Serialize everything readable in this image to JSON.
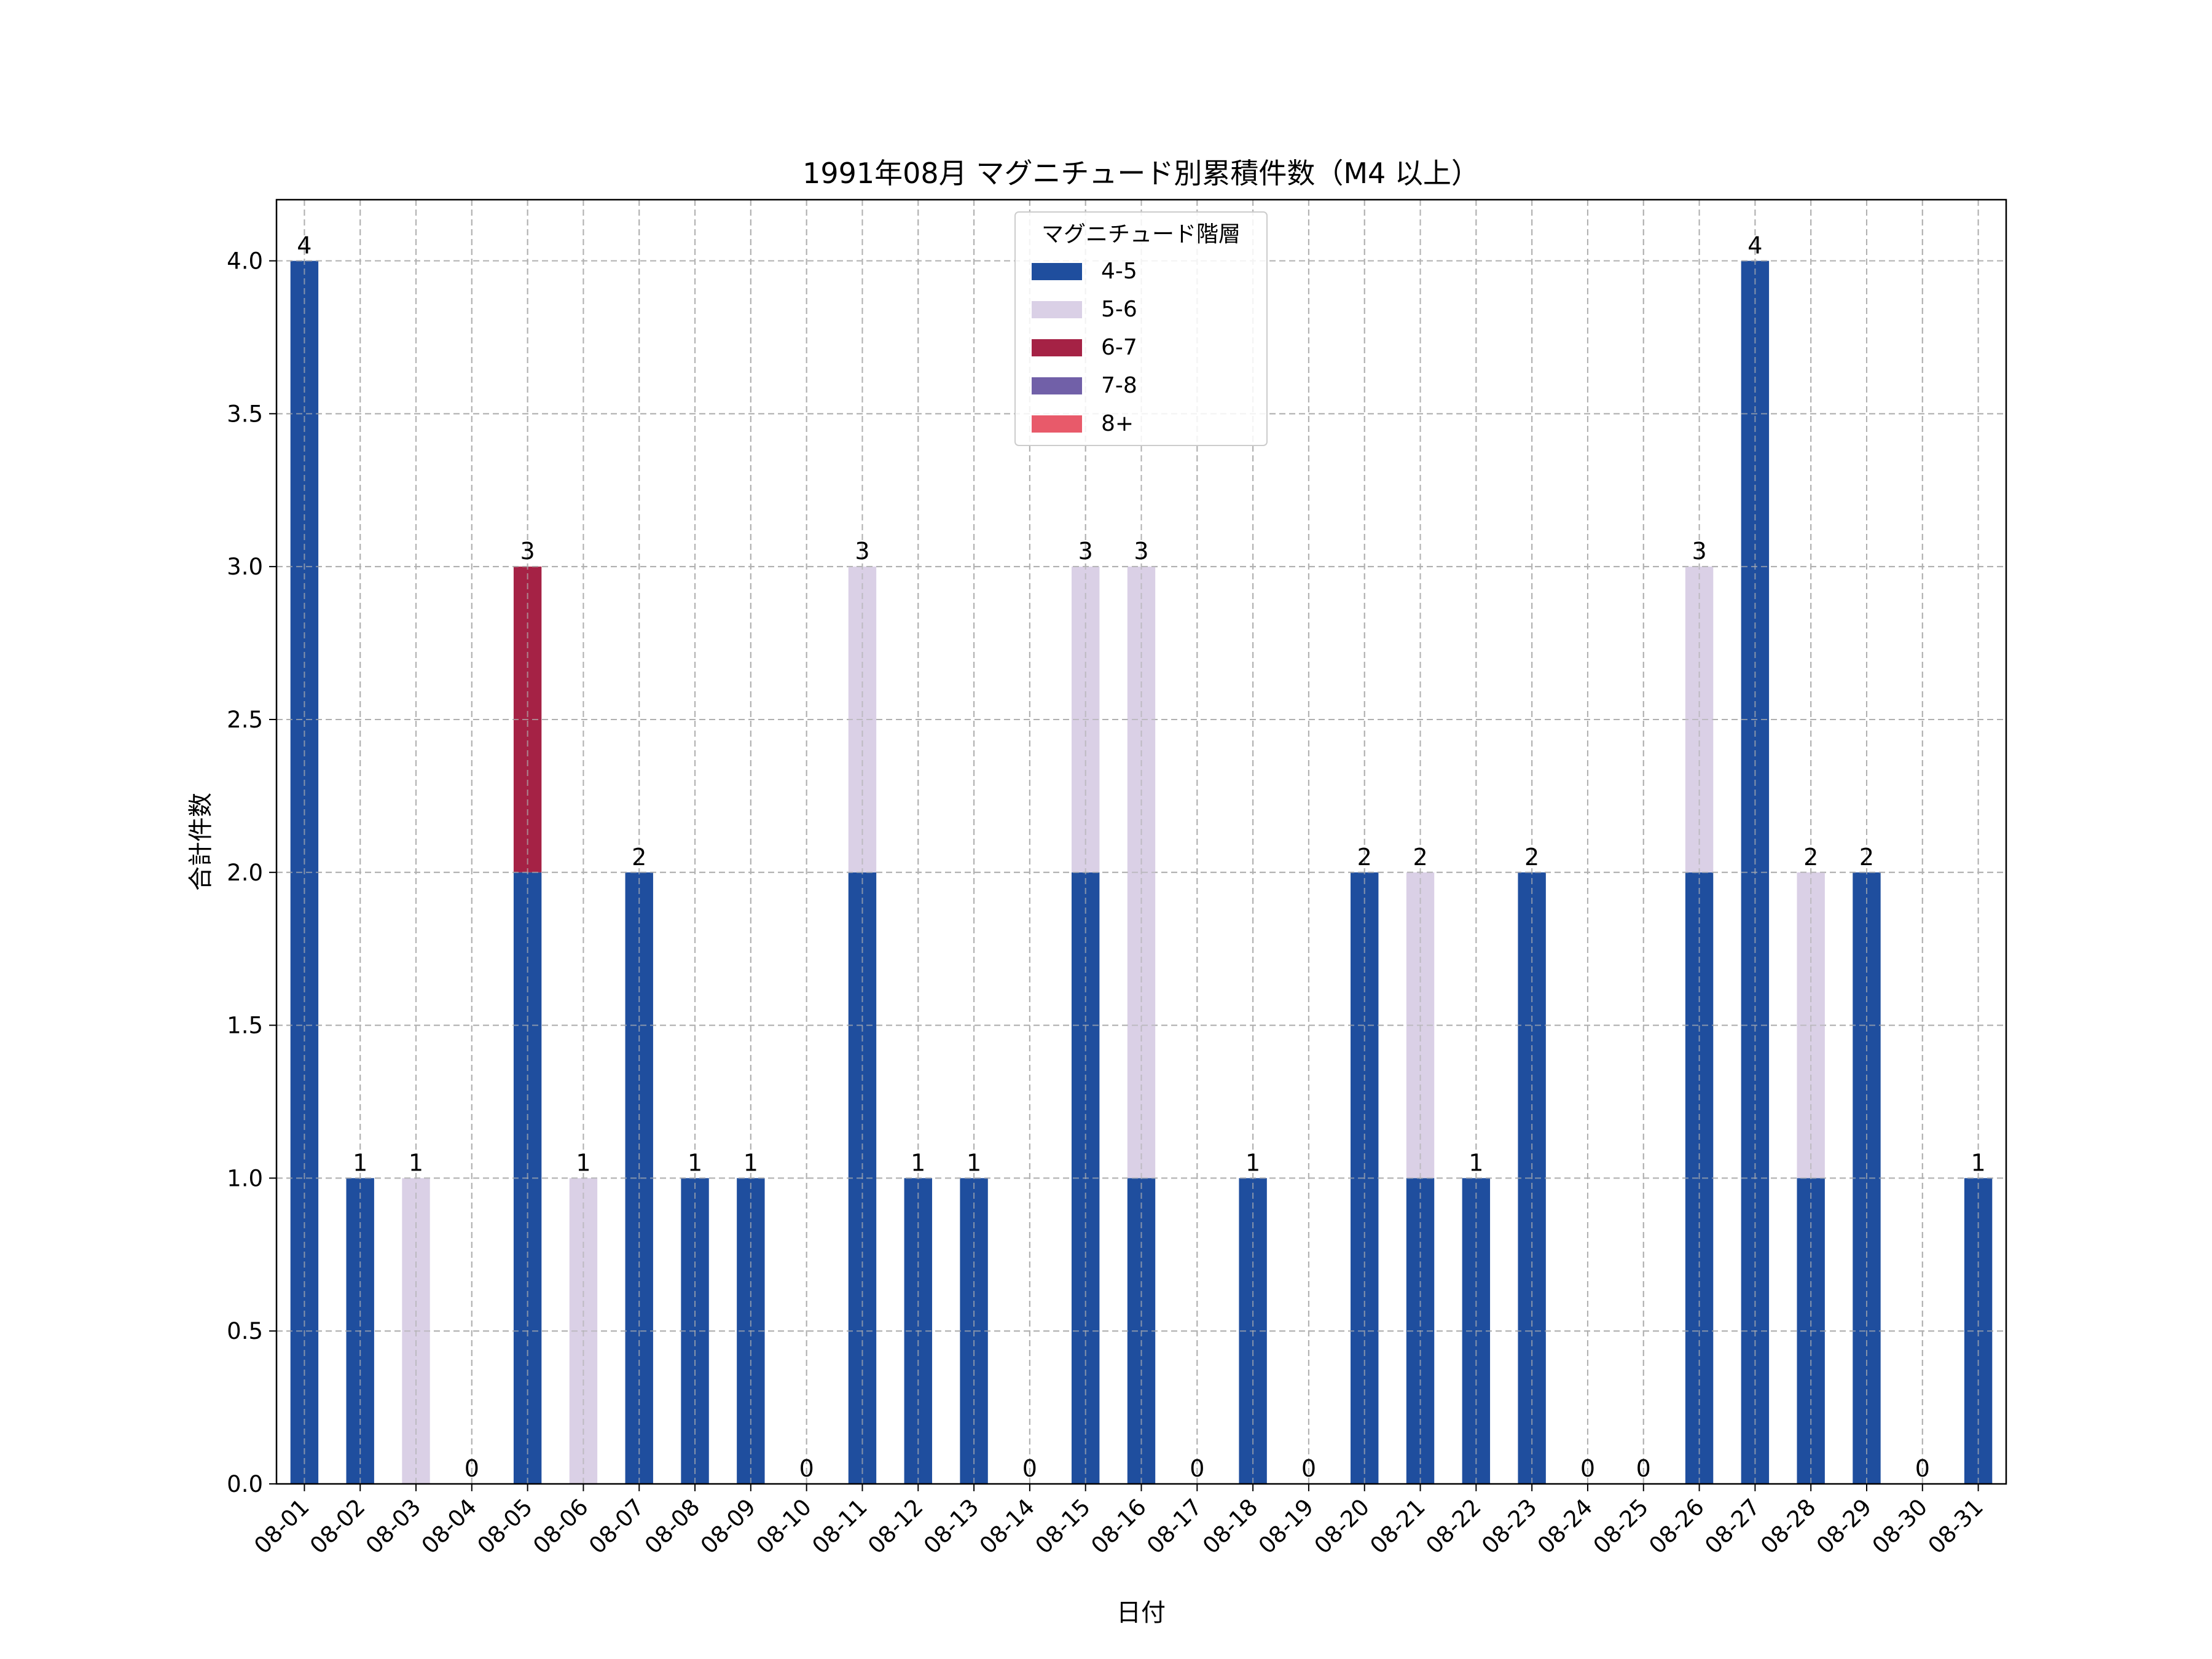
{
  "chart_data": {
    "type": "bar",
    "stacked": true,
    "title": "1991年08月 マグニチュード別累積件数（M4 以上）",
    "xlabel": "日付",
    "ylabel": "合計件数",
    "ylim": [
      0,
      4.2
    ],
    "yticks": [
      0.0,
      0.5,
      1.0,
      1.5,
      2.0,
      2.5,
      3.0,
      3.5,
      4.0
    ],
    "ytick_labels": [
      "0.0",
      "0.5",
      "1.0",
      "1.5",
      "2.0",
      "2.5",
      "3.0",
      "3.5",
      "4.0"
    ],
    "grid": true,
    "legend": {
      "title": "マグニチュード階層",
      "placement": "top-center"
    },
    "categories": [
      "08-01",
      "08-02",
      "08-03",
      "08-04",
      "08-05",
      "08-06",
      "08-07",
      "08-08",
      "08-09",
      "08-10",
      "08-11",
      "08-12",
      "08-13",
      "08-14",
      "08-15",
      "08-16",
      "08-17",
      "08-18",
      "08-19",
      "08-20",
      "08-21",
      "08-22",
      "08-23",
      "08-24",
      "08-25",
      "08-26",
      "08-27",
      "08-28",
      "08-29",
      "08-30",
      "08-31"
    ],
    "series": [
      {
        "name": "4-5",
        "color": "#1f4e9e",
        "values": [
          4,
          1,
          0,
          0,
          2,
          0,
          2,
          1,
          1,
          0,
          2,
          1,
          1,
          0,
          2,
          1,
          0,
          1,
          0,
          2,
          1,
          1,
          2,
          0,
          0,
          2,
          4,
          1,
          2,
          0,
          1
        ]
      },
      {
        "name": "5-6",
        "color": "#dad0e6",
        "values": [
          0,
          0,
          1,
          0,
          0,
          1,
          0,
          0,
          0,
          0,
          1,
          0,
          0,
          0,
          1,
          2,
          0,
          0,
          0,
          0,
          1,
          0,
          0,
          0,
          0,
          1,
          0,
          1,
          0,
          0,
          0
        ]
      },
      {
        "name": "6-7",
        "color": "#a52245",
        "values": [
          0,
          0,
          0,
          0,
          1,
          0,
          0,
          0,
          0,
          0,
          0,
          0,
          0,
          0,
          0,
          0,
          0,
          0,
          0,
          0,
          0,
          0,
          0,
          0,
          0,
          0,
          0,
          0,
          0,
          0,
          0
        ]
      },
      {
        "name": "7-8",
        "color": "#7160a8",
        "values": [
          0,
          0,
          0,
          0,
          0,
          0,
          0,
          0,
          0,
          0,
          0,
          0,
          0,
          0,
          0,
          0,
          0,
          0,
          0,
          0,
          0,
          0,
          0,
          0,
          0,
          0,
          0,
          0,
          0,
          0,
          0
        ]
      },
      {
        "name": "8+",
        "color": "#e85a6a",
        "values": [
          0,
          0,
          0,
          0,
          0,
          0,
          0,
          0,
          0,
          0,
          0,
          0,
          0,
          0,
          0,
          0,
          0,
          0,
          0,
          0,
          0,
          0,
          0,
          0,
          0,
          0,
          0,
          0,
          0,
          0,
          0
        ]
      }
    ],
    "totals": [
      4,
      1,
      1,
      0,
      3,
      1,
      2,
      1,
      1,
      0,
      3,
      1,
      1,
      0,
      3,
      3,
      0,
      1,
      0,
      2,
      2,
      1,
      2,
      0,
      0,
      3,
      4,
      2,
      2,
      0,
      1
    ]
  }
}
